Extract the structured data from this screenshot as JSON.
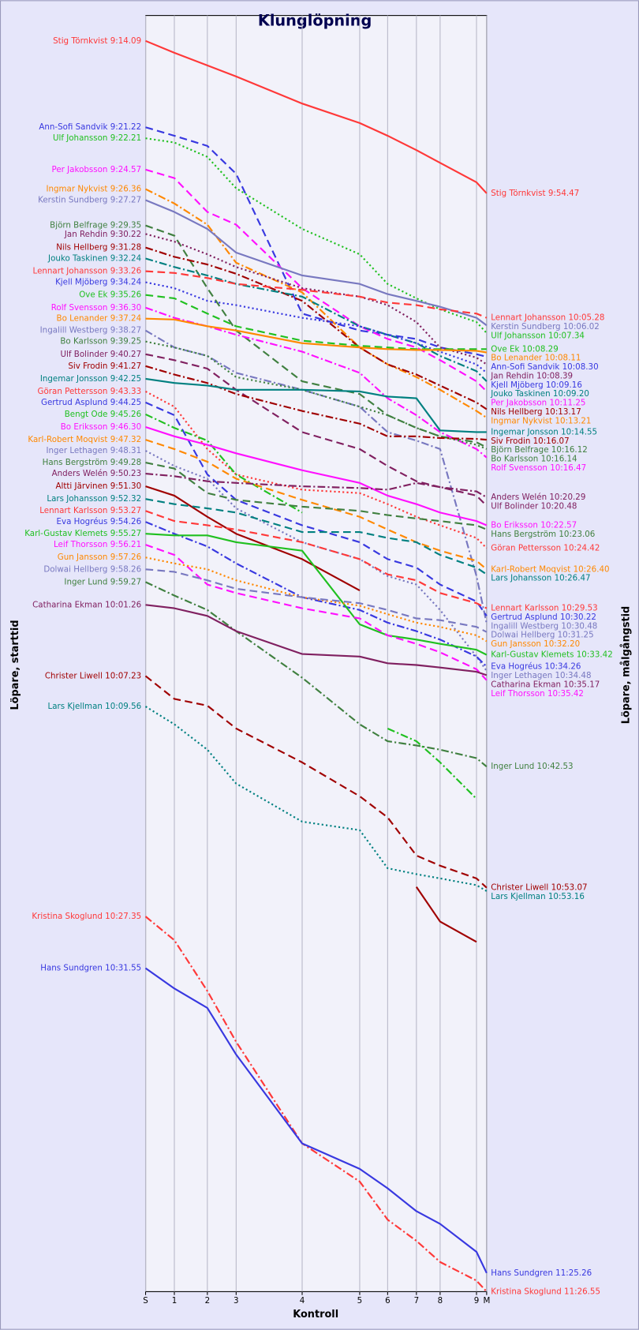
{
  "chart_data": {
    "type": "line",
    "title": "Klunglöpning",
    "x_label": "Kontroll",
    "y_label": "Löpare, starttid",
    "y2_label": "Löpare, målgångstid",
    "grid": true,
    "y_inverted": true,
    "x": [
      0,
      34,
      73,
      107,
      185,
      253,
      286,
      320,
      348,
      391,
      403
    ],
    "xlim": [
      0,
      403
    ],
    "xticks": [
      {
        "value": 0,
        "label": "S"
      },
      {
        "value": 34,
        "label": "1"
      },
      {
        "value": 73,
        "label": "2"
      },
      {
        "value": 107,
        "label": "3"
      },
      {
        "value": 185,
        "label": "4"
      },
      {
        "value": 253,
        "label": "5"
      },
      {
        "value": 286,
        "label": "6"
      },
      {
        "value": 320,
        "label": "7"
      },
      {
        "value": 348,
        "label": "8"
      },
      {
        "value": 391,
        "label": "9"
      },
      {
        "value": 403,
        "label": "M"
      }
    ],
    "ylim": [
      1525,
      18
    ],
    "series": [
      {
        "name": "Stig Törnkvist",
        "start": "9:14.09",
        "finish": "9:54.47",
        "color": "#ff3838",
        "dash": "solid",
        "values": [
          48,
          62,
          77,
          90,
          122,
          145,
          160,
          177,
          192,
          215,
          228
        ]
      },
      {
        "name": "Ann-Sofi Sandvik",
        "start": "9:21.22",
        "finish": "10:08.30",
        "color": "#3838e0",
        "dash": "dashed",
        "values": [
          150,
          160,
          172,
          205,
          370,
          390,
          395,
          400,
          410,
          418,
          421
        ]
      },
      {
        "name": "Ulf Johansson",
        "start": "9:22.21",
        "finish": "10:07.34",
        "color": "#20c020",
        "dash": "dotted",
        "values": [
          163,
          168,
          185,
          222,
          270,
          300,
          335,
          352,
          365,
          380,
          393
        ]
      },
      {
        "name": "Per Jakobsson",
        "start": "9:24.57",
        "finish": "10:11.25",
        "color": "#ff10ff",
        "dash": "dashed",
        "values": [
          200,
          210,
          250,
          265,
          340,
          385,
          400,
          410,
          425,
          450,
          462
        ]
      },
      {
        "name": "Ingmar Nykvist",
        "start": "9:26.36",
        "finish": "10:13.21",
        "color": "#ff8800",
        "dash": "dashdot",
        "values": [
          223,
          240,
          265,
          310,
          345,
          410,
          430,
          445,
          460,
          485,
          493
        ]
      },
      {
        "name": "Kerstin Sundberg",
        "start": "9:27.27",
        "finish": "10:06.02",
        "color": "#7878c0",
        "dash": "solid",
        "values": [
          236,
          250,
          270,
          298,
          325,
          335,
          347,
          355,
          362,
          375,
          384
        ]
      },
      {
        "name": "Björn Belfrage",
        "start": "9:29.35",
        "finish": "10:16.12",
        "color": "#408040",
        "dash": "dashed",
        "values": [
          266,
          278,
          340,
          390,
          450,
          465,
          490,
          505,
          515,
          522,
          528
        ]
      },
      {
        "name": "Jan Rehdin",
        "start": "9:30.22",
        "finish": "10:08.39",
        "color": "#802060",
        "dash": "dotted",
        "values": [
          276,
          285,
          300,
          315,
          340,
          350,
          360,
          380,
          410,
          422,
          430
        ]
      },
      {
        "name": "Nils Hellberg",
        "start": "9:31.28",
        "finish": "10:13.17",
        "color": "#a00000",
        "dash": "dashdot",
        "values": [
          292,
          303,
          312,
          323,
          355,
          410,
          430,
          442,
          455,
          475,
          483
        ]
      },
      {
        "name": "Jouko Taskinen",
        "start": "9:32.24",
        "finish": "10:09.20",
        "color": "#008080",
        "dash": "dashdot",
        "values": [
          305,
          315,
          325,
          335,
          350,
          385,
          395,
          405,
          420,
          438,
          450
        ]
      },
      {
        "name": "Lennart Johansson",
        "start": "9:33.26",
        "finish": "10:05.28",
        "color": "#ff3838",
        "dash": "dashed",
        "values": [
          320,
          322,
          328,
          335,
          342,
          350,
          357,
          360,
          365,
          370,
          375
        ]
      },
      {
        "name": "Kjell Mjöberg",
        "start": "9:34.24",
        "finish": "10:09.16",
        "color": "#3838e0",
        "dash": "dotted",
        "values": [
          333,
          340,
          355,
          360,
          375,
          385,
          395,
          405,
          415,
          430,
          440
        ]
      },
      {
        "name": "Ove Ek",
        "start": "9:35.26",
        "finish": "10:08.29",
        "color": "#20c020",
        "dash": "dashed",
        "values": [
          348,
          352,
          370,
          385,
          402,
          408,
          410,
          412,
          412,
          412,
          412
        ]
      },
      {
        "name": "Rolf Svensson",
        "start": "9:36.30",
        "finish": "10:16.47",
        "color": "#ff10ff",
        "dash": "dashdot",
        "values": [
          363,
          375,
          385,
          395,
          415,
          440,
          470,
          490,
          510,
          530,
          540
        ]
      },
      {
        "name": "Bo Lenander",
        "start": "9:37.24",
        "finish": "10:08.11",
        "color": "#ff8800",
        "dash": "solid",
        "values": [
          376,
          377,
          385,
          390,
          405,
          410,
          412,
          413,
          413,
          414,
          416
        ]
      },
      {
        "name": "Ingalill Westberg",
        "start": "9:38.27",
        "finish": "10:30.48",
        "color": "#7878c0",
        "dash": "dashdot",
        "values": [
          390,
          410,
          420,
          440,
          460,
          480,
          510,
          520,
          530,
          680,
          736
        ]
      },
      {
        "name": "Bo Karlsson",
        "start": "9:39.25",
        "finish": "10:16.14",
        "color": "#408040",
        "dash": "dotted",
        "values": [
          403,
          410,
          420,
          445,
          460,
          480,
          490,
          505,
          515,
          525,
          530
        ]
      },
      {
        "name": "Ulf Bolinder",
        "start": "9:40.27",
        "finish": "10:20.48",
        "color": "#802060",
        "dash": "dashed",
        "values": [
          418,
          425,
          435,
          460,
          510,
          530,
          550,
          568,
          575,
          585,
          597
        ]
      },
      {
        "name": "Siv Frodin",
        "start": "9:41.27",
        "finish": "10:16.07",
        "color": "#a00000",
        "dash": "dashdot",
        "values": [
          432,
          442,
          452,
          465,
          485,
          500,
          515,
          515,
          517,
          518,
          519
        ]
      },
      {
        "name": "Ingemar Jonsson",
        "start": "9:42.25",
        "finish": "10:14.55",
        "color": "#008080",
        "dash": "solid",
        "values": [
          447,
          452,
          455,
          460,
          460,
          462,
          468,
          470,
          508,
          510,
          510
        ]
      },
      {
        "name": "Göran Pettersson",
        "start": "9:43.33",
        "finish": "10:24.42",
        "color": "#ff3838",
        "dash": "dotted",
        "values": [
          462,
          480,
          530,
          560,
          578,
          582,
          595,
          610,
          620,
          635,
          647
        ]
      },
      {
        "name": "Gertrud Asplund",
        "start": "9:44.25",
        "finish": "10:30.22",
        "color": "#3838e0",
        "dash": "dashed",
        "values": [
          475,
          490,
          560,
          590,
          620,
          640,
          660,
          670,
          690,
          710,
          727
        ]
      },
      {
        "name": "Bengt Ode",
        "start": "9:45.26",
        "color": "#20c020",
        "dash": "dashdot",
        "values": [
          489,
          505,
          520,
          560,
          605,
          null,
          860,
          875,
          900,
          943,
          null
        ]
      },
      {
        "name": "Bo Eriksson",
        "start": "9:46.30",
        "finish": "10:22.57",
        "color": "#ff10ff",
        "dash": "solid",
        "values": [
          504,
          515,
          525,
          535,
          555,
          570,
          585,
          595,
          605,
          615,
          620
        ]
      },
      {
        "name": "Karl-Robert Moqvist",
        "start": "9:47.32",
        "finish": "10:26.40",
        "color": "#ff8800",
        "dash": "dashed",
        "values": [
          519,
          530,
          545,
          565,
          590,
          610,
          625,
          640,
          650,
          662,
          672
        ]
      },
      {
        "name": "Inger Lethagen",
        "start": "9:48.31",
        "finish": "10:34.48",
        "color": "#7878c0",
        "dash": "dotted",
        "values": [
          532,
          550,
          565,
          600,
          640,
          660,
          680,
          690,
          720,
          775,
          792
        ]
      },
      {
        "name": "Hans Bergström",
        "start": "9:49.28",
        "finish": "10:23.06",
        "color": "#408040",
        "dash": "dashed",
        "values": [
          546,
          553,
          582,
          590,
          598,
          603,
          608,
          612,
          615,
          620,
          625
        ]
      },
      {
        "name": "Anders Welén",
        "start": "9:50.23",
        "finish": "10:20.29",
        "color": "#802060",
        "dash": "dashdot",
        "values": [
          559,
          562,
          568,
          570,
          574,
          576,
          578,
          570,
          575,
          580,
          587
        ]
      },
      {
        "name": "Altti Järvinen",
        "start": "9:51.30",
        "color": "#a00000",
        "dash": "solid",
        "values": [
          574,
          585,
          610,
          630,
          660,
          697,
          null,
          1047,
          1088,
          1112,
          null
        ]
      },
      {
        "name": "Lars Johansson",
        "start": "9:52.32",
        "finish": "10:26.47",
        "color": "#008080",
        "dash": "dashed",
        "values": [
          589,
          595,
          600,
          605,
          628,
          628,
          635,
          640,
          655,
          670,
          678
        ]
      },
      {
        "name": "Lennart Karlsson",
        "start": "9:53.27",
        "finish": "10:29.53",
        "color": "#ff3838",
        "dash": "dashed",
        "values": [
          603,
          615,
          620,
          625,
          640,
          660,
          678,
          685,
          700,
          712,
          718
        ]
      },
      {
        "name": "Eva Hogréus",
        "start": "9:54.26",
        "finish": "10:34.26",
        "color": "#3838e0",
        "dash": "dashdot",
        "values": [
          616,
          630,
          645,
          665,
          705,
          720,
          735,
          745,
          755,
          775,
          787
        ]
      },
      {
        "name": "Karl-Gustav Klemets",
        "start": "9:55.27",
        "finish": "10:33.42",
        "color": "#20c020",
        "dash": "solid",
        "values": [
          630,
          632,
          632,
          640,
          650,
          737,
          750,
          755,
          760,
          767,
          773
        ]
      },
      {
        "name": "Leif Thorsson",
        "start": "9:56.21",
        "finish": "10:35.42",
        "color": "#ff10ff",
        "dash": "dashed",
        "values": [
          643,
          655,
          690,
          700,
          718,
          730,
          750,
          760,
          770,
          790,
          803
        ]
      },
      {
        "name": "Gun Jansson",
        "start": "9:57.26",
        "finish": "10:32.20",
        "color": "#ff8800",
        "dash": "dotted",
        "values": [
          658,
          665,
          672,
          685,
          705,
          715,
          725,
          735,
          740,
          750,
          757
        ]
      },
      {
        "name": "Dolwai Hellberg",
        "start": "9:58.26",
        "finish": "10:31.25",
        "color": "#7878c0",
        "dash": "dashed",
        "values": [
          672,
          675,
          685,
          695,
          705,
          712,
          720,
          730,
          732,
          740,
          746
        ]
      },
      {
        "name": "Inger Lund",
        "start": "9:59.27",
        "finish": "10:42.53",
        "color": "#408040",
        "dash": "dashdot",
        "values": [
          687,
          703,
          720,
          745,
          800,
          855,
          875,
          880,
          885,
          895,
          905
        ]
      },
      {
        "name": "Catharina Ekman",
        "start": "10:01.26",
        "finish": "10:35.17",
        "color": "#802060",
        "dash": "solid",
        "values": [
          714,
          718,
          727,
          745,
          772,
          775,
          783,
          785,
          788,
          793,
          797
        ]
      },
      {
        "name": "Christer Liwell",
        "start": "10:07.23",
        "finish": "10:53.07",
        "color": "#a00000",
        "dash": "dashed",
        "values": [
          798,
          825,
          833,
          860,
          900,
          940,
          965,
          1010,
          1022,
          1037,
          1048
        ]
      },
      {
        "name": "Lars Kjellman",
        "start": "10:09.56",
        "finish": "10:53.16",
        "color": "#008080",
        "dash": "dotted",
        "values": [
          834,
          855,
          885,
          925,
          970,
          980,
          1025,
          1032,
          1037,
          1045,
          1052
        ]
      },
      {
        "name": "Kristina Skoglund",
        "start": "10:27.35",
        "finish": "11:26.55",
        "color": "#ff3838",
        "dash": "dashdot",
        "values": [
          1082,
          1110,
          1170,
          1230,
          1350,
          1395,
          1440,
          1465,
          1490,
          1512,
          1525
        ]
      },
      {
        "name": "Hans Sundgren",
        "start": "10:31.55",
        "finish": "11:25.26",
        "color": "#3838e0",
        "dash": "solid",
        "values": [
          1143,
          1167,
          1190,
          1245,
          1350,
          1380,
          1403,
          1430,
          1445,
          1478,
          1503
        ]
      }
    ]
  }
}
